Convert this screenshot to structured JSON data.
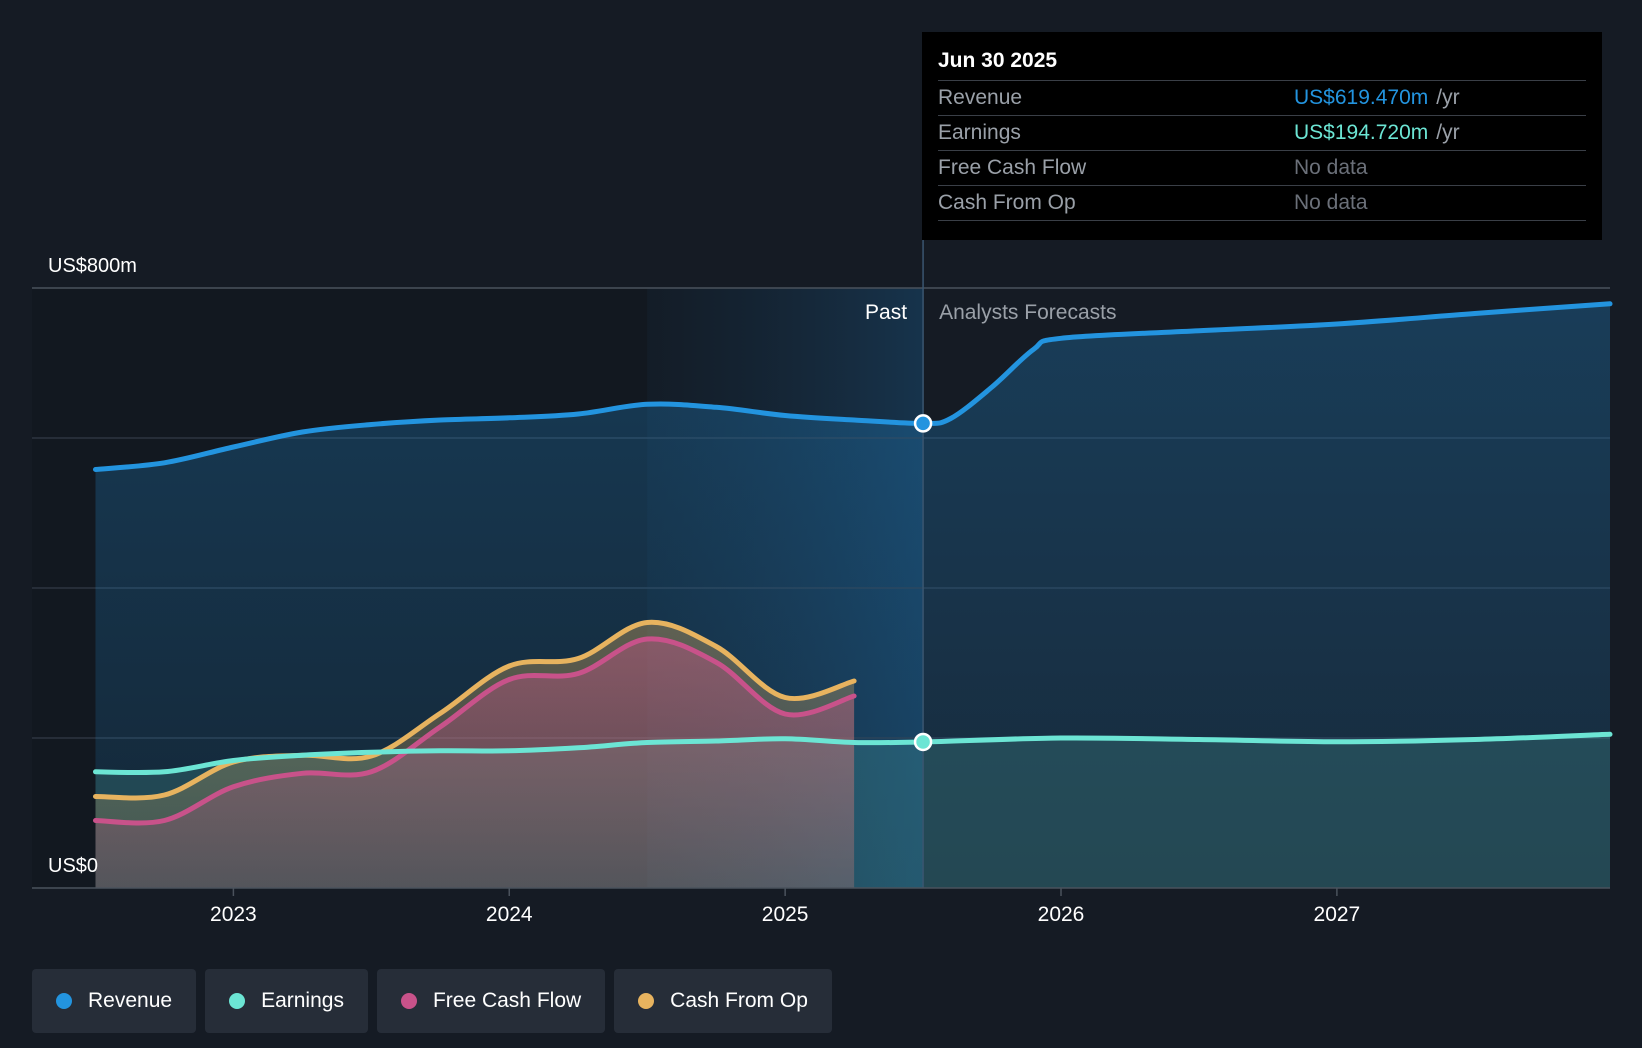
{
  "colors": {
    "revenue": "#2394df",
    "earnings": "#6ce5d4",
    "fcf": "#c8528a",
    "cfo": "#e7b35f",
    "background": "#151b24"
  },
  "chart_data": {
    "type": "line",
    "y_axis_labels": [
      "US$800m",
      "US$0"
    ],
    "ylim": [
      0,
      800
    ],
    "xlim": [
      2022.27,
      2027.99
    ],
    "x_ticks": [
      2023,
      2024,
      2025,
      2026,
      2027
    ],
    "x_tick_labels": [
      "2023",
      "2024",
      "2025",
      "2026",
      "2027"
    ],
    "past_label": "Past",
    "forecast_label": "Analysts Forecasts",
    "divider_x": 2025.5,
    "series": [
      {
        "name": "Revenue",
        "key": "revenue",
        "x": [
          2022.5,
          2022.75,
          2023.0,
          2023.25,
          2023.5,
          2023.75,
          2024.0,
          2024.25,
          2024.5,
          2024.75,
          2025.0,
          2025.25,
          2025.5,
          2025.6,
          2025.75,
          2025.9,
          2026.0,
          2026.5,
          2027.0,
          2027.5,
          2027.99
        ],
        "values": [
          558,
          567,
          588,
          608,
          618,
          624,
          627,
          632,
          645,
          641,
          630,
          624,
          619.47,
          626,
          668,
          718,
          733,
          743,
          752,
          766,
          779
        ]
      },
      {
        "name": "Earnings",
        "key": "earnings",
        "x": [
          2022.5,
          2022.75,
          2023.0,
          2023.25,
          2023.5,
          2023.75,
          2024.0,
          2024.25,
          2024.5,
          2024.75,
          2025.0,
          2025.25,
          2025.5,
          2026.0,
          2026.5,
          2027.0,
          2027.5,
          2027.99
        ],
        "values": [
          155,
          155,
          170,
          177,
          181,
          183,
          183,
          187,
          194,
          196,
          199,
          194,
          194.72,
          200,
          198,
          195,
          198,
          205
        ]
      },
      {
        "name": "Free Cash Flow",
        "key": "fcf",
        "x": [
          2022.5,
          2022.75,
          2023.0,
          2023.25,
          2023.5,
          2023.75,
          2024.0,
          2024.25,
          2024.5,
          2024.75,
          2025.0,
          2025.25
        ],
        "values": [
          90,
          90,
          135,
          153,
          155,
          215,
          278,
          286,
          332,
          301,
          232,
          256
        ]
      },
      {
        "name": "Cash From Op",
        "key": "cfo",
        "x": [
          2022.5,
          2022.75,
          2023.0,
          2023.25,
          2023.5,
          2023.75,
          2024.0,
          2024.25,
          2024.5,
          2024.75,
          2025.0,
          2025.25
        ],
        "values": [
          122,
          124,
          168,
          177,
          176,
          233,
          296,
          306,
          354,
          322,
          254,
          276
        ]
      }
    ]
  },
  "tooltip": {
    "date": "Jun 30 2025",
    "rows": [
      {
        "label": "Revenue",
        "value": "US$619.470m",
        "unit": "/yr"
      },
      {
        "label": "Earnings",
        "value": "US$194.720m",
        "unit": "/yr"
      },
      {
        "label": "Free Cash Flow",
        "value": "No data"
      },
      {
        "label": "Cash From Op",
        "value": "No data"
      }
    ]
  },
  "legend": [
    {
      "label": "Revenue"
    },
    {
      "label": "Earnings"
    },
    {
      "label": "Free Cash Flow"
    },
    {
      "label": "Cash From Op"
    }
  ]
}
